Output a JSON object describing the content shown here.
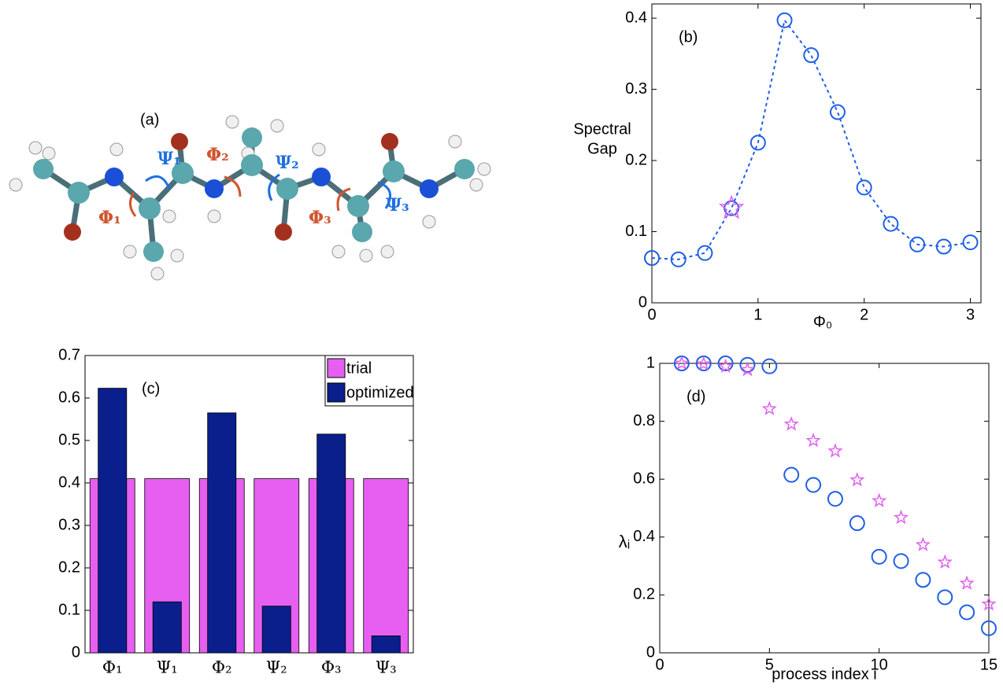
{
  "molecule": {
    "label": "(a)",
    "angles": [
      "Ψ₁",
      "Φ₂",
      "Ψ₂",
      "Φ₁",
      "Φ₃",
      "Ψ₃"
    ]
  },
  "chart_data": [
    {
      "type": "line",
      "label": "(b)",
      "xlabel": "Φ₀",
      "ylabel": [
        "Spectral",
        "Gap"
      ],
      "x": [
        0,
        0.25,
        0.5,
        0.75,
        1,
        1.25,
        1.5,
        1.75,
        2,
        2.25,
        2.5,
        2.75,
        3
      ],
      "series": [
        {
          "color": "#1f5fe6",
          "marker": "circle",
          "linestyle": "dashed",
          "values": [
            0.063,
            0.061,
            0.07,
            0.133,
            0.225,
            0.397,
            0.348,
            0.268,
            0.162,
            0.111,
            0.082,
            0.079,
            0.085
          ]
        },
        {
          "color": "#e060f0",
          "marker": "star",
          "linestyle": "none",
          "values": [
            null,
            null,
            null,
            0.133,
            null,
            null,
            null,
            null,
            null,
            null,
            null,
            null,
            null
          ]
        }
      ],
      "xlim": [
        0,
        3.1
      ],
      "xticks": [
        0,
        1,
        2,
        3
      ],
      "ylim": [
        0,
        0.42
      ],
      "yticks": [
        0,
        0.1,
        0.2,
        0.3,
        0.4
      ],
      "grid": false
    },
    {
      "type": "bar",
      "label": "(c)",
      "categories": [
        "Φ₁",
        "Ψ₁",
        "Φ₂",
        "Ψ₂",
        "Φ₃",
        "Ψ₃"
      ],
      "series": [
        {
          "name": "trial",
          "color": "#e65ff0",
          "values": [
            0.41,
            0.41,
            0.41,
            0.41,
            0.41,
            0.41
          ]
        },
        {
          "name": "optimized",
          "color": "#0a1f8c",
          "values": [
            0.623,
            0.12,
            0.565,
            0.11,
            0.515,
            0.04
          ]
        }
      ],
      "ylim": [
        0,
        0.7
      ],
      "yticks": [
        0,
        0.1,
        0.2,
        0.3,
        0.4,
        0.5,
        0.6,
        0.7
      ],
      "legend": "top-right",
      "grid": false
    },
    {
      "type": "scatter",
      "label": "(d)",
      "xlabel": "process index i",
      "ylabel": "λᵢ",
      "x": [
        1,
        2,
        3,
        4,
        5,
        6,
        7,
        8,
        9,
        10,
        11,
        12,
        13,
        14,
        15
      ],
      "series": [
        {
          "color": "#1f5fe6",
          "marker": "circle",
          "values": [
            1,
            1,
            1,
            0.995,
            0.99,
            0.615,
            0.58,
            0.532,
            0.448,
            0.332,
            0.317,
            0.252,
            0.192,
            0.14,
            0.085
          ]
        },
        {
          "color": "#e060f0",
          "marker": "star",
          "values": [
            1,
            0.998,
            0.99,
            0.978,
            0.843,
            0.79,
            0.733,
            0.697,
            0.597,
            0.525,
            0.467,
            0.373,
            0.313,
            0.24,
            0.168
          ]
        }
      ],
      "xlim": [
        0,
        15
      ],
      "xticks": [
        0,
        5,
        10,
        15
      ],
      "ylim": [
        0,
        1
      ],
      "yticks": [
        0,
        0.2,
        0.4,
        0.6,
        0.8,
        1
      ],
      "grid": false
    }
  ]
}
